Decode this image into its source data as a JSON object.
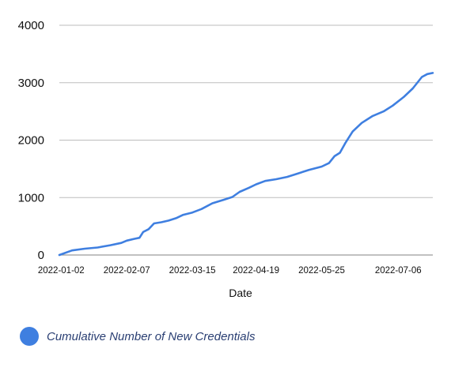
{
  "chart_data": {
    "type": "line",
    "title": "",
    "xlabel": "Date",
    "ylabel": "",
    "ylim": [
      0,
      4000
    ],
    "y_ticks": [
      "0",
      "1000",
      "2000",
      "3000",
      "4000"
    ],
    "x_tick_labels": [
      "2022-01-02",
      "2022-02-07",
      "2022-03-15",
      "2022-04-19",
      "2022-05-25",
      "2022-07-06"
    ],
    "grid": true,
    "legend_position": "bottom-left",
    "series": [
      {
        "name": "Cumulative Number of New Credentials",
        "color": "#3f7fe0",
        "points": [
          [
            "2022-01-01",
            0
          ],
          [
            "2022-01-08",
            80
          ],
          [
            "2022-01-15",
            110
          ],
          [
            "2022-01-22",
            130
          ],
          [
            "2022-01-29",
            170
          ],
          [
            "2022-02-04",
            210
          ],
          [
            "2022-02-07",
            250
          ],
          [
            "2022-02-11",
            280
          ],
          [
            "2022-02-14",
            300
          ],
          [
            "2022-02-16",
            400
          ],
          [
            "2022-02-19",
            450
          ],
          [
            "2022-02-22",
            550
          ],
          [
            "2022-02-26",
            570
          ],
          [
            "2022-03-02",
            600
          ],
          [
            "2022-03-06",
            640
          ],
          [
            "2022-03-10",
            700
          ],
          [
            "2022-03-15",
            740
          ],
          [
            "2022-03-20",
            800
          ],
          [
            "2022-03-26",
            900
          ],
          [
            "2022-04-01",
            960
          ],
          [
            "2022-04-06",
            1010
          ],
          [
            "2022-04-10",
            1100
          ],
          [
            "2022-04-15",
            1170
          ],
          [
            "2022-04-19",
            1230
          ],
          [
            "2022-04-24",
            1290
          ],
          [
            "2022-04-30",
            1320
          ],
          [
            "2022-05-06",
            1360
          ],
          [
            "2022-05-12",
            1420
          ],
          [
            "2022-05-18",
            1480
          ],
          [
            "2022-05-25",
            1540
          ],
          [
            "2022-05-29",
            1600
          ],
          [
            "2022-06-01",
            1720
          ],
          [
            "2022-06-04",
            1780
          ],
          [
            "2022-06-07",
            1950
          ],
          [
            "2022-06-11",
            2150
          ],
          [
            "2022-06-16",
            2300
          ],
          [
            "2022-06-22",
            2420
          ],
          [
            "2022-06-28",
            2500
          ],
          [
            "2022-07-03",
            2600
          ],
          [
            "2022-07-09",
            2750
          ],
          [
            "2022-07-14",
            2900
          ],
          [
            "2022-07-19",
            3100
          ],
          [
            "2022-07-22",
            3150
          ],
          [
            "2022-07-25",
            3170
          ]
        ]
      }
    ]
  },
  "colors": {
    "grid": "#bdbdbd",
    "axis": "#9a9a9a",
    "text": "#111111",
    "legend_text": "#2a3f73"
  }
}
